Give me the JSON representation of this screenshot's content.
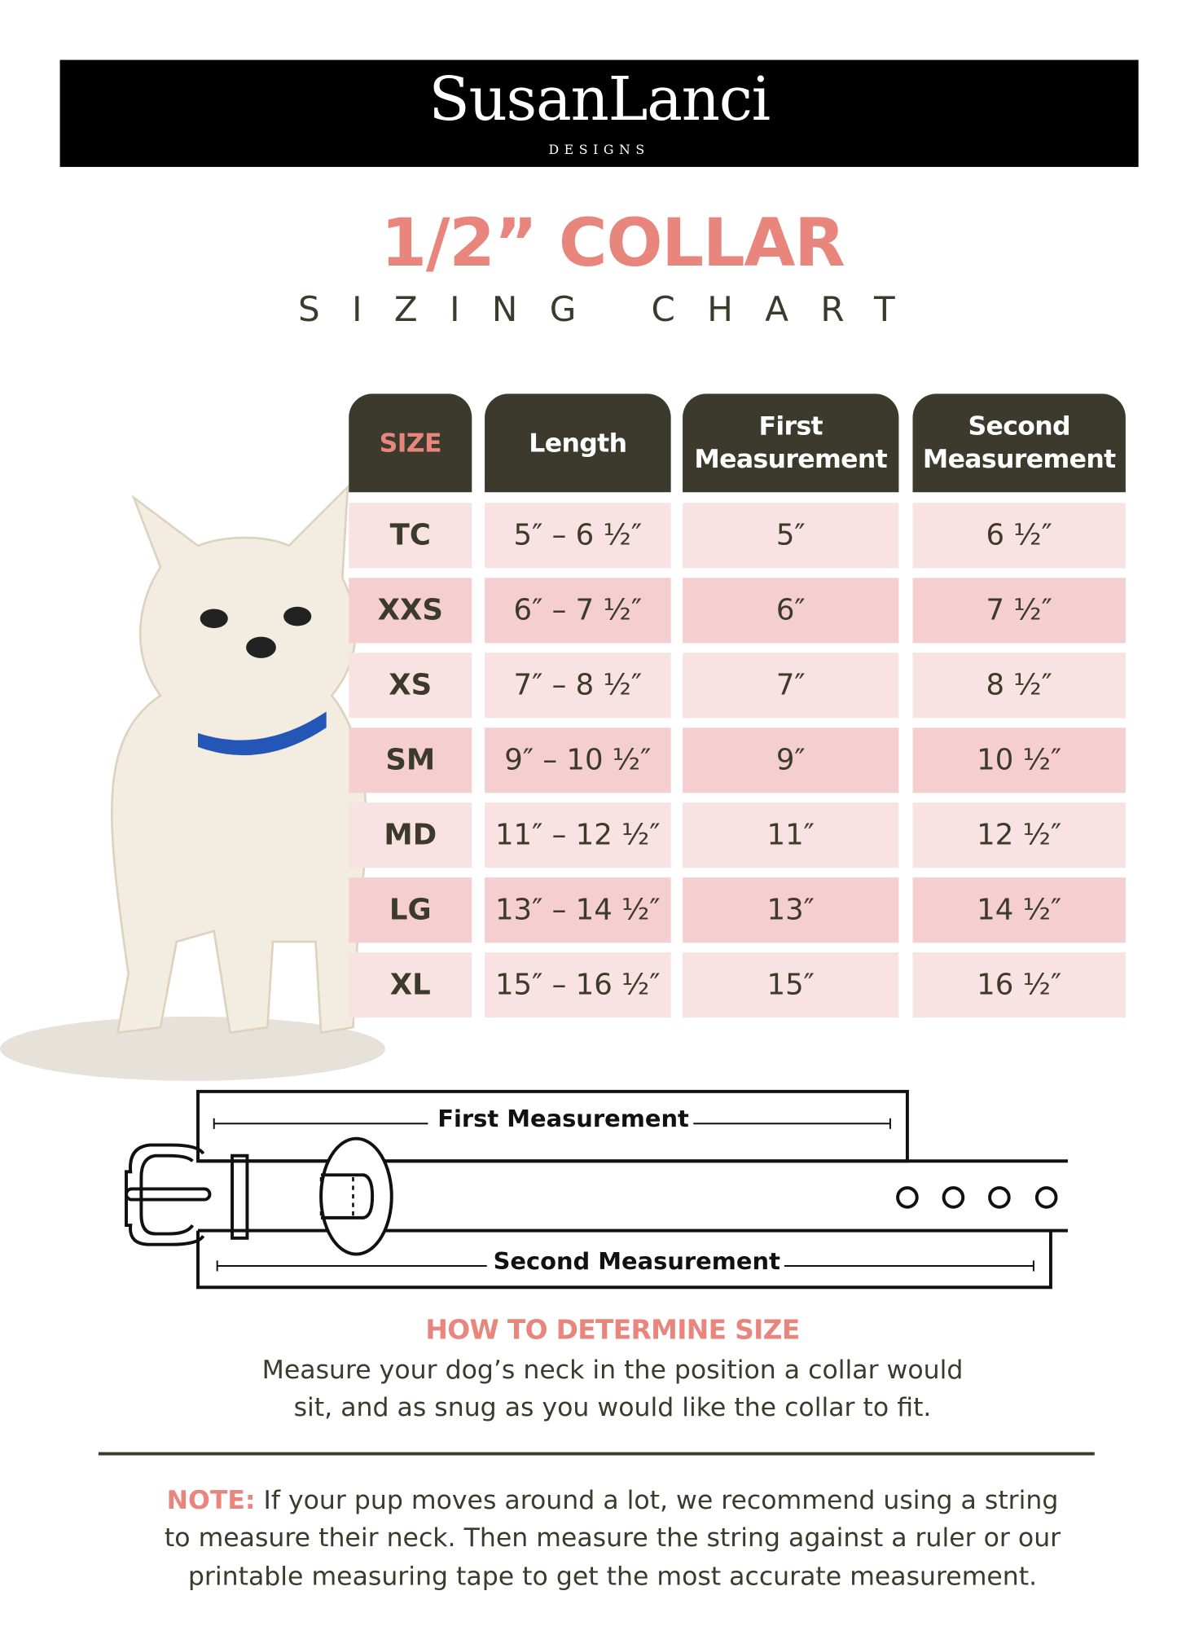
{
  "brand": {
    "logo": "SusanLanci",
    "logo_sub": "DESIGNS"
  },
  "title": "1/2” COLLAR",
  "subtitle": "SIZING CHART",
  "colors": {
    "accent": "#e8857d",
    "header": "#3c3a2c",
    "row_light": "#f9e3e2",
    "row_dark": "#f5cfcf"
  },
  "table": {
    "headers": [
      "SIZE",
      "Length",
      "First Measurement",
      "Second Measurement"
    ],
    "rows": [
      [
        "TC",
        "5″ – 6 ½″",
        "5″",
        "6 ½″"
      ],
      [
        "XXS",
        "6″ – 7 ½″",
        "6″",
        "7 ½″"
      ],
      [
        "XS",
        "7″ – 8 ½″",
        "7″",
        "8 ½″"
      ],
      [
        "SM",
        "9″ – 10 ½″",
        "9″",
        "10 ½″"
      ],
      [
        "MD",
        "11″ – 12 ½″",
        "11″",
        "12 ½″"
      ],
      [
        "LG",
        "13″ – 14 ½″",
        "13″",
        "14 ½″"
      ],
      [
        "XL",
        "15″ – 16 ½″",
        "15″",
        "16 ½″"
      ]
    ]
  },
  "diagram": {
    "first_label": "First Measurement",
    "second_label": "Second Measurement"
  },
  "how_to": {
    "heading": "HOW TO DETERMINE SIZE",
    "line1": "Measure your dog’s neck in the position a collar would",
    "line2": "sit, and as snug as you would  like the collar to fit."
  },
  "note": {
    "label": "NOTE:",
    "line1": " If your pup moves around a lot, we recommend using a string",
    "line2": "to measure their neck. Then measure the string against a ruler or our",
    "line3": "printable measuring tape to get the most accurate measurement."
  }
}
